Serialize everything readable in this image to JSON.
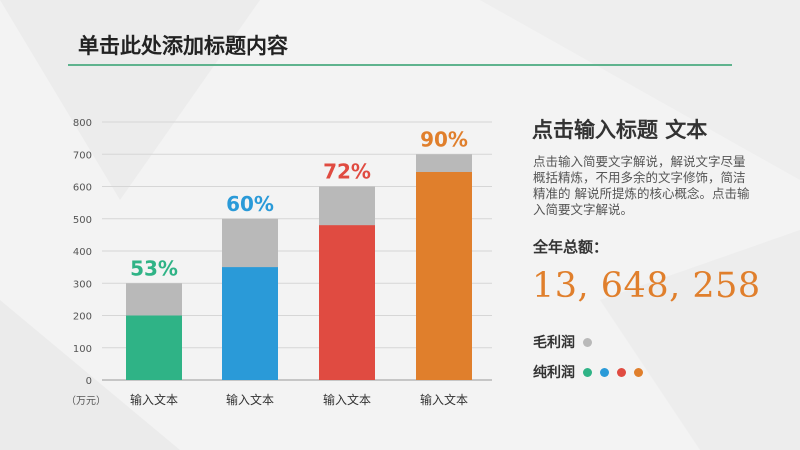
{
  "page_title": "单击此处添加标题内容",
  "side": {
    "heading": "点击输入标题 文本",
    "description": "点击输入简要文字解说，解说文字尽量概括精炼，不用多余的文字修饰，简洁精准的 解说所提炼的核心概念。点击输入简要文字解说。",
    "total_label": "全年总额：",
    "total_value": "13, 648, 258"
  },
  "legend": {
    "gross_label": "毛利润",
    "net_label": "纯利润"
  },
  "colors": {
    "accent_rule": "#5fb38e",
    "gross_gray": "#b9b9b9",
    "net_green": "#2fb386",
    "net_blue": "#2a9ad8",
    "net_red": "#e04b41",
    "net_orange": "#e07f2c"
  },
  "chart_data": {
    "type": "bar",
    "unit_label": "（万元）",
    "categories": [
      "输入文本",
      "输入文本",
      "输入文本",
      "输入文本"
    ],
    "series": [
      {
        "name": "毛利润",
        "values": [
          300,
          500,
          600,
          700
        ]
      },
      {
        "name": "纯利润",
        "values": [
          200,
          350,
          480,
          645
        ]
      }
    ],
    "bar_colors": [
      "#2fb386",
      "#2a9ad8",
      "#e04b41",
      "#e07f2c"
    ],
    "data_labels": [
      "53%",
      "60%",
      "72%",
      "90%"
    ],
    "yticks": [
      0,
      100,
      200,
      300,
      400,
      500,
      600,
      700,
      800
    ],
    "ylim": [
      0,
      800
    ],
    "grid": true
  }
}
